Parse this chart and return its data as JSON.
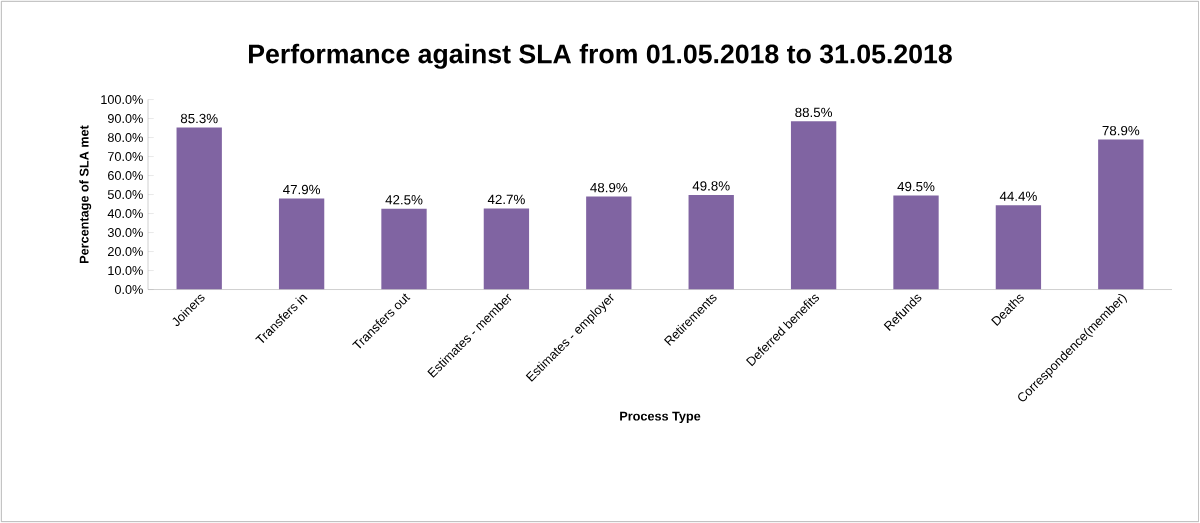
{
  "chart_data": {
    "type": "bar",
    "title": "Performance against SLA from 01.05.2018 to 31.05.2018",
    "xlabel": "Process Type",
    "ylabel": "Percentage of SLA met",
    "categories": [
      "Joiners",
      "Transfers in",
      "Transfers out",
      "Estimates - member",
      "Estimates - employer",
      "Retirements",
      "Deferred benefits",
      "Refunds",
      "Deaths",
      "Correspondence(member)"
    ],
    "values": [
      85.3,
      47.9,
      42.5,
      42.7,
      48.9,
      49.8,
      88.5,
      49.5,
      44.4,
      78.9
    ],
    "value_labels": [
      "85.3%",
      "47.9%",
      "42.5%",
      "42.7%",
      "48.9%",
      "49.8%",
      "88.5%",
      "49.5%",
      "44.4%",
      "78.9%"
    ],
    "color": "#8064a2",
    "ylim": [
      0,
      100
    ],
    "yticks": [
      {
        "value": 0,
        "label": "0.0%"
      },
      {
        "value": 10,
        "label": "10.0%"
      },
      {
        "value": 20,
        "label": "20.0%"
      },
      {
        "value": 30,
        "label": "30.0%"
      },
      {
        "value": 40,
        "label": "40.0%"
      },
      {
        "value": 50,
        "label": "50.0%"
      },
      {
        "value": 60,
        "label": "60.0%"
      },
      {
        "value": 70,
        "label": "70.0%"
      },
      {
        "value": 80,
        "label": "80.0%"
      },
      {
        "value": 90,
        "label": "90.0%"
      },
      {
        "value": 100,
        "label": "100.0%"
      }
    ],
    "grid": false
  }
}
